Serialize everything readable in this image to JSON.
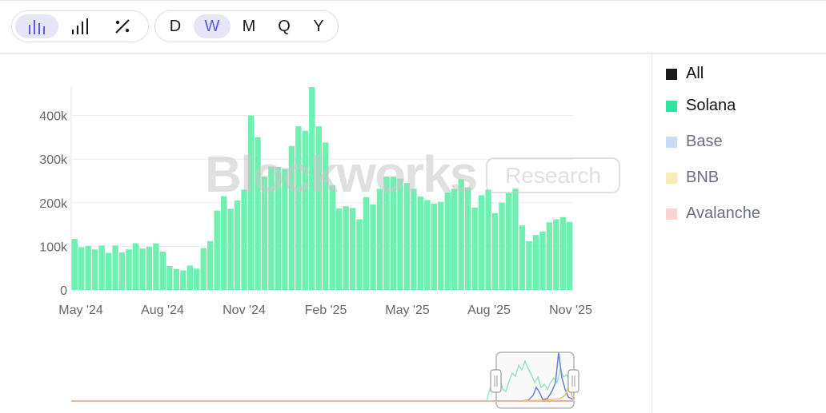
{
  "toolbar": {
    "chart_types": [
      {
        "icon": "bar-chart-icon",
        "active": true
      },
      {
        "icon": "ascending-bars-icon",
        "active": false
      },
      {
        "icon": "percent-icon",
        "active": false
      }
    ],
    "periods": [
      {
        "label": "D",
        "active": false
      },
      {
        "label": "W",
        "active": true
      },
      {
        "label": "M",
        "active": false
      },
      {
        "label": "Q",
        "active": false
      },
      {
        "label": "Y",
        "active": false
      }
    ]
  },
  "watermark": {
    "brand": "Blockworks",
    "badge": "Research"
  },
  "legend": [
    {
      "label": "All",
      "color": "#1a1a1a",
      "active": true
    },
    {
      "label": "Solana",
      "color": "#2ee59d",
      "active": true
    },
    {
      "label": "Base",
      "color": "#c8dcf5",
      "active": false
    },
    {
      "label": "BNB",
      "color": "#fbe9b6",
      "active": false
    },
    {
      "label": "Avalanche",
      "color": "#f7d3d3",
      "active": false
    }
  ],
  "chart_data": {
    "type": "bar",
    "series": [
      {
        "name": "Solana",
        "color": "#2ee59d",
        "values": [
          117000,
          98000,
          101000,
          93000,
          102000,
          85000,
          102000,
          86000,
          93000,
          107000,
          95000,
          99000,
          107000,
          88000,
          55000,
          48000,
          45000,
          56000,
          49000,
          96000,
          112000,
          182000,
          215000,
          186000,
          205000,
          230000,
          400000,
          350000,
          260000,
          283000,
          282000,
          278000,
          330000,
          375000,
          365000,
          465000,
          375000,
          338000,
          240000,
          187000,
          192000,
          188000,
          162000,
          213000,
          196000,
          232000,
          260000,
          260000,
          255000,
          245000,
          232000,
          214000,
          206000,
          198000,
          202000,
          224000,
          232000,
          254000,
          235000,
          189000,
          217000,
          230000,
          176000,
          200000,
          222000,
          232000,
          148000,
          112000,
          126000,
          134000,
          155000,
          162000,
          167000,
          156000
        ],
        "x_start": "2024-04-29",
        "interval": "1 week"
      }
    ],
    "xlabel": "",
    "ylabel": "",
    "x_tick_labels": [
      "May '24",
      "Aug '24",
      "Nov '24",
      "Feb '25",
      "May '25",
      "Aug '25",
      "Nov '25"
    ],
    "y_ticks": [
      0,
      100000,
      200000,
      300000,
      400000
    ],
    "y_tick_labels": [
      "0",
      "100k",
      "200k",
      "300k",
      "400k"
    ],
    "ylim": [
      0,
      465000
    ],
    "grid": true,
    "legend_position": "right"
  },
  "navigator": {
    "description_series": [
      "Solana",
      "Base",
      "BNB"
    ]
  }
}
